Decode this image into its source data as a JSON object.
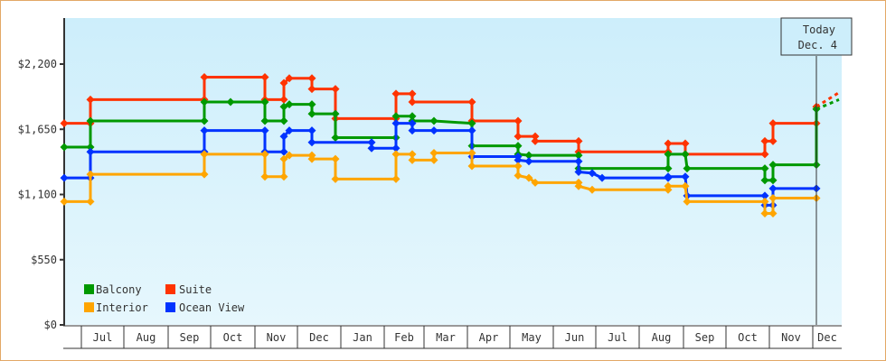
{
  "chart_data": {
    "type": "line",
    "step": true,
    "title": "",
    "xlabel": "",
    "ylabel": "",
    "ylim": [
      0,
      2200
    ],
    "y_ticks": [
      "$0",
      "$550",
      "$1,100",
      "$1,650",
      "$2,200"
    ],
    "y_tick_values": [
      0,
      550,
      1100,
      1650,
      2200
    ],
    "x_ticks": [
      "Jul",
      "Aug",
      "Sep",
      "Oct",
      "Nov",
      "Dec",
      "Jan",
      "Feb",
      "Mar",
      "Apr",
      "May",
      "Jun",
      "Jul",
      "Aug",
      "Sep",
      "Oct",
      "Nov",
      "Dec"
    ],
    "grid": false,
    "legend_position": "bottom-left inside",
    "annotation": {
      "line1": "Today",
      "line2": "Dec. 4"
    },
    "colors": {
      "Balcony": "#009900",
      "Suite": "#ff3300",
      "Interior": "#ffa500",
      "Ocean View": "#0033ff",
      "background_top": "#cdeefb",
      "background_bottom": "#e6f7fd",
      "frame": "#e3a866"
    },
    "series": [
      {
        "name": "Suite",
        "color": "#ff3300",
        "points": [
          [
            71,
            1700
          ],
          [
            100,
            1700
          ],
          [
            100,
            1900
          ],
          [
            226,
            1900
          ],
          [
            226,
            2090
          ],
          [
            293,
            2090
          ],
          [
            293,
            1900
          ],
          [
            314,
            1900
          ],
          [
            314,
            2040
          ],
          [
            320,
            2080
          ],
          [
            345,
            2080
          ],
          [
            345,
            1990
          ],
          [
            371,
            1990
          ],
          [
            371,
            1740
          ],
          [
            438,
            1740
          ],
          [
            438,
            1950
          ],
          [
            456,
            1950
          ],
          [
            456,
            1880
          ],
          [
            522,
            1880
          ],
          [
            522,
            1720
          ],
          [
            573,
            1720
          ],
          [
            573,
            1590
          ],
          [
            592,
            1590
          ],
          [
            592,
            1550
          ],
          [
            640,
            1550
          ],
          [
            640,
            1460
          ],
          [
            739,
            1460
          ],
          [
            739,
            1530
          ],
          [
            758,
            1530
          ],
          [
            758,
            1440
          ],
          [
            846,
            1440
          ],
          [
            846,
            1550
          ],
          [
            855,
            1550
          ],
          [
            855,
            1700
          ],
          [
            903,
            1700
          ],
          [
            903,
            1840
          ]
        ]
      },
      {
        "name": "Balcony",
        "color": "#009900",
        "points": [
          [
            71,
            1500
          ],
          [
            100,
            1500
          ],
          [
            100,
            1720
          ],
          [
            226,
            1720
          ],
          [
            226,
            1880
          ],
          [
            255,
            1880
          ],
          [
            293,
            1880
          ],
          [
            293,
            1720
          ],
          [
            314,
            1720
          ],
          [
            314,
            1840
          ],
          [
            320,
            1860
          ],
          [
            345,
            1860
          ],
          [
            345,
            1780
          ],
          [
            371,
            1780
          ],
          [
            371,
            1580
          ],
          [
            438,
            1580
          ],
          [
            438,
            1760
          ],
          [
            456,
            1760
          ],
          [
            456,
            1720
          ],
          [
            480,
            1720
          ],
          [
            522,
            1700
          ],
          [
            522,
            1510
          ],
          [
            573,
            1510
          ],
          [
            573,
            1440
          ],
          [
            585,
            1430
          ],
          [
            640,
            1430
          ],
          [
            640,
            1320
          ],
          [
            739,
            1320
          ],
          [
            739,
            1440
          ],
          [
            758,
            1440
          ],
          [
            760,
            1320
          ],
          [
            846,
            1320
          ],
          [
            846,
            1220
          ],
          [
            855,
            1220
          ],
          [
            855,
            1350
          ],
          [
            903,
            1350
          ],
          [
            903,
            1820
          ]
        ]
      },
      {
        "name": "Ocean View",
        "color": "#0033ff",
        "points": [
          [
            71,
            1240
          ],
          [
            100,
            1240
          ],
          [
            100,
            1460
          ],
          [
            226,
            1460
          ],
          [
            226,
            1640
          ],
          [
            293,
            1640
          ],
          [
            293,
            1460
          ],
          [
            314,
            1460
          ],
          [
            314,
            1590
          ],
          [
            320,
            1640
          ],
          [
            345,
            1640
          ],
          [
            345,
            1540
          ],
          [
            411,
            1540
          ],
          [
            411,
            1490
          ],
          [
            438,
            1490
          ],
          [
            438,
            1700
          ],
          [
            456,
            1700
          ],
          [
            456,
            1640
          ],
          [
            480,
            1640
          ],
          [
            522,
            1640
          ],
          [
            522,
            1420
          ],
          [
            573,
            1420
          ],
          [
            573,
            1390
          ],
          [
            585,
            1380
          ],
          [
            640,
            1380
          ],
          [
            640,
            1290
          ],
          [
            655,
            1280
          ],
          [
            666,
            1240
          ],
          [
            739,
            1240
          ],
          [
            739,
            1250
          ],
          [
            758,
            1250
          ],
          [
            760,
            1090
          ],
          [
            846,
            1090
          ],
          [
            846,
            1010
          ],
          [
            855,
            1010
          ],
          [
            855,
            1150
          ],
          [
            903,
            1150
          ]
        ]
      },
      {
        "name": "Interior",
        "color": "#ffa500",
        "points": [
          [
            71,
            1040
          ],
          [
            100,
            1040
          ],
          [
            100,
            1270
          ],
          [
            226,
            1270
          ],
          [
            226,
            1440
          ],
          [
            293,
            1440
          ],
          [
            293,
            1250
          ],
          [
            314,
            1250
          ],
          [
            314,
            1400
          ],
          [
            320,
            1430
          ],
          [
            345,
            1430
          ],
          [
            345,
            1400
          ],
          [
            371,
            1400
          ],
          [
            371,
            1230
          ],
          [
            438,
            1230
          ],
          [
            438,
            1440
          ],
          [
            456,
            1440
          ],
          [
            456,
            1390
          ],
          [
            480,
            1390
          ],
          [
            480,
            1450
          ],
          [
            522,
            1450
          ],
          [
            522,
            1340
          ],
          [
            573,
            1340
          ],
          [
            573,
            1260
          ],
          [
            585,
            1240
          ],
          [
            592,
            1200
          ],
          [
            640,
            1200
          ],
          [
            640,
            1170
          ],
          [
            655,
            1140
          ],
          [
            739,
            1140
          ],
          [
            739,
            1170
          ],
          [
            758,
            1170
          ],
          [
            760,
            1040
          ],
          [
            846,
            1040
          ],
          [
            846,
            940
          ],
          [
            855,
            940
          ],
          [
            855,
            1070
          ],
          [
            903,
            1070
          ]
        ]
      }
    ],
    "forecast": [
      {
        "name": "Suite",
        "from": [
          903,
          1840
        ],
        "to": [
          928,
          1960
        ]
      },
      {
        "name": "Balcony",
        "from": [
          903,
          1820
        ],
        "to": [
          928,
          1900
        ]
      }
    ]
  },
  "legend": {
    "items": [
      {
        "label": "Balcony",
        "color": "#009900"
      },
      {
        "label": "Suite",
        "color": "#ff3300"
      },
      {
        "label": "Interior",
        "color": "#ffa500"
      },
      {
        "label": "Ocean View",
        "color": "#0033ff"
      }
    ]
  },
  "today_box": {
    "line1": "Today",
    "line2": "Dec. 4"
  }
}
